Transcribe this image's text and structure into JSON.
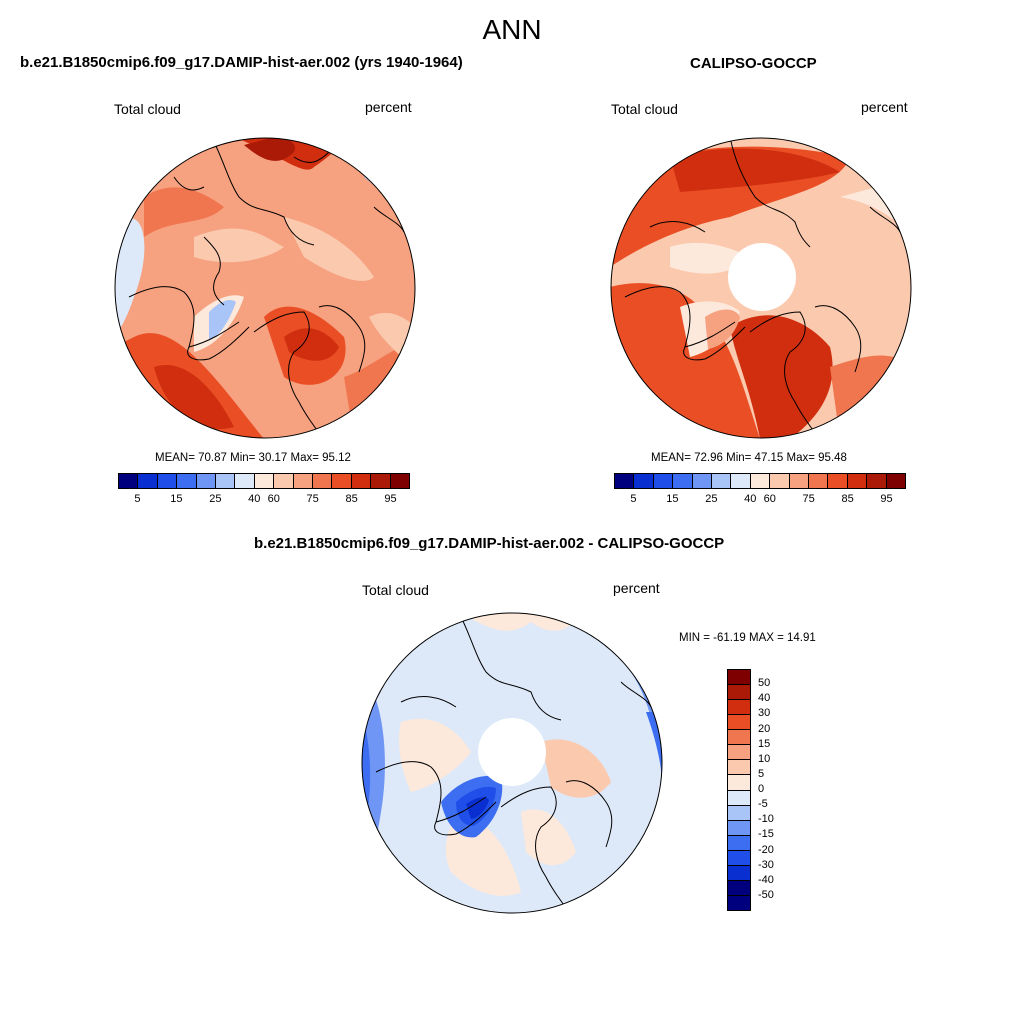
{
  "main_title": "ANN",
  "panels": {
    "model": {
      "title": "b.e21.B1850cmip6.f09_g17.DAMIP-hist-aer.002 (yrs 1940-1964)",
      "variable": "Total cloud",
      "units": "percent",
      "stats": "MEAN=  70.87  Min=  30.17  Max=  95.12",
      "mean": 70.87,
      "min": 30.17,
      "max": 95.12
    },
    "obs": {
      "title": "CALIPSO-GOCCP",
      "variable": "Total cloud",
      "units": "percent",
      "stats": "MEAN=  72.96  Min=  47.15  Max=  95.48",
      "mean": 72.96,
      "min": 47.15,
      "max": 95.48
    },
    "diff": {
      "title": "b.e21.B1850cmip6.f09_g17.DAMIP-hist-aer.002 - CALIPSO-GOCCP",
      "variable": "Total cloud",
      "units": "percent",
      "stats": "MIN = -61.19 MAX =  14.91",
      "min": -61.19,
      "max": 14.91
    }
  },
  "colorbar_abs": {
    "tick_labels": [
      "5",
      "15",
      "25",
      "40",
      "60",
      "75",
      "85",
      "95"
    ],
    "colors": [
      "#00007f",
      "#0a2fd0",
      "#1f4fe8",
      "#3d6ef2",
      "#6f96f5",
      "#a9c4f7",
      "#dde9f8",
      "#fde9dc",
      "#fbc9ae",
      "#f6a17f",
      "#f07650",
      "#e94e25",
      "#d12e0f",
      "#ab1a07",
      "#7f0000"
    ]
  },
  "colorbar_diff": {
    "tick_labels": [
      "50",
      "40",
      "30",
      "20",
      "15",
      "10",
      "5",
      "0",
      "-5",
      "-10",
      "-15",
      "-20",
      "-30",
      "-40",
      "-50"
    ],
    "colors": [
      "#7f0000",
      "#ab1a07",
      "#d12e0f",
      "#e94e25",
      "#f07650",
      "#f6a17f",
      "#fbc9ae",
      "#fde9dc",
      "#dde9f8",
      "#a9c4f7",
      "#6f96f5",
      "#3d6ef2",
      "#1f4fe8",
      "#0a2fd0",
      "#00007f",
      "#00007f"
    ]
  }
}
